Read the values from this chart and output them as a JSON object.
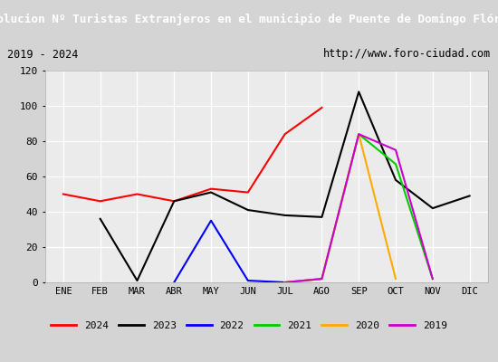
{
  "title": "Evolucion Nº Turistas Extranjeros en el municipio de Puente de Domingo Flórez",
  "subtitle_left": "2019 - 2024",
  "subtitle_right": "http://www.foro-ciudad.com",
  "months": [
    "ENE",
    "FEB",
    "MAR",
    "ABR",
    "MAY",
    "JUN",
    "JUL",
    "AGO",
    "SEP",
    "OCT",
    "NOV",
    "DIC"
  ],
  "series": [
    {
      "year": "2024",
      "color": "#ff0000",
      "x": [
        0,
        1,
        2,
        3,
        4,
        5,
        6,
        7
      ],
      "y": [
        50,
        46,
        50,
        46,
        53,
        51,
        84,
        99
      ]
    },
    {
      "year": "2023",
      "color": "#000000",
      "x": [
        1,
        2,
        3,
        4,
        5,
        6,
        7,
        8,
        9,
        10,
        11
      ],
      "y": [
        36,
        1,
        46,
        51,
        41,
        38,
        37,
        108,
        58,
        42,
        49
      ]
    },
    {
      "year": "2022",
      "color": "#0000ff",
      "x": [
        3,
        4,
        5,
        6
      ],
      "y": [
        0,
        35,
        1,
        0
      ]
    },
    {
      "year": "2021",
      "color": "#00cc00",
      "x": [
        6,
        7,
        8,
        9,
        10
      ],
      "y": [
        0,
        2,
        84,
        67,
        2
      ]
    },
    {
      "year": "2020",
      "color": "#ffaa00",
      "x": [
        6,
        7,
        8,
        9
      ],
      "y": [
        0,
        2,
        84,
        2
      ]
    },
    {
      "year": "2019",
      "color": "#cc00cc",
      "x": [
        6,
        7,
        8,
        9,
        10
      ],
      "y": [
        0,
        2,
        84,
        75,
        2
      ]
    }
  ],
  "ylim": [
    0,
    120
  ],
  "yticks": [
    0,
    20,
    40,
    60,
    80,
    100,
    120
  ],
  "background_color": "#d4d4d4",
  "plot_background": "#ebebeb",
  "title_background": "#4a6fa5",
  "title_color": "#ffffff",
  "subtitle_background": "#c8c8c8",
  "grid_color": "#ffffff",
  "border_color": "#4a6fa5"
}
